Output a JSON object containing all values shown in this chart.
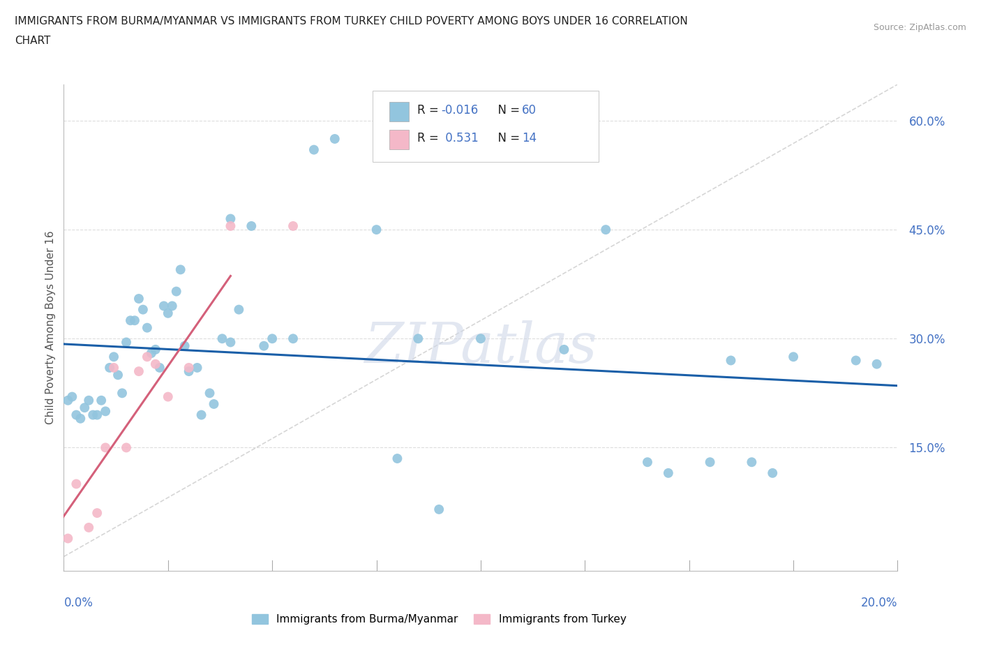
{
  "title_line1": "IMMIGRANTS FROM BURMA/MYANMAR VS IMMIGRANTS FROM TURKEY CHILD POVERTY AMONG BOYS UNDER 16 CORRELATION",
  "title_line2": "CHART",
  "source": "Source: ZipAtlas.com",
  "ylabel": "Child Poverty Among Boys Under 16",
  "ytick_vals": [
    0.0,
    0.15,
    0.3,
    0.45,
    0.6
  ],
  "ytick_labels": [
    "",
    "15.0%",
    "30.0%",
    "45.0%",
    "60.0%"
  ],
  "xlim": [
    0.0,
    0.2
  ],
  "ylim": [
    -0.02,
    0.65
  ],
  "watermark": "ZIPatlas",
  "color_burma": "#92c5de",
  "color_turkey": "#f4b8c8",
  "burma_trendline_color": "#1a5fa8",
  "turkey_trendline_color": "#d4607a",
  "diag_line_color": "#cccccc",
  "grid_color": "#dddddd",
  "burma_scatter_x": [
    0.001,
    0.002,
    0.003,
    0.004,
    0.005,
    0.006,
    0.007,
    0.008,
    0.009,
    0.01,
    0.011,
    0.012,
    0.013,
    0.014,
    0.015,
    0.016,
    0.017,
    0.018,
    0.019,
    0.02,
    0.021,
    0.022,
    0.023,
    0.024,
    0.025,
    0.026,
    0.027,
    0.028,
    0.029,
    0.03,
    0.032,
    0.033,
    0.035,
    0.036,
    0.038,
    0.04,
    0.04,
    0.042,
    0.045,
    0.048,
    0.05,
    0.055,
    0.06,
    0.065,
    0.075,
    0.08,
    0.085,
    0.09,
    0.1,
    0.12,
    0.13,
    0.14,
    0.145,
    0.155,
    0.16,
    0.165,
    0.17,
    0.175,
    0.19,
    0.195
  ],
  "burma_scatter_y": [
    0.215,
    0.22,
    0.195,
    0.19,
    0.205,
    0.215,
    0.195,
    0.195,
    0.215,
    0.2,
    0.26,
    0.275,
    0.25,
    0.225,
    0.295,
    0.325,
    0.325,
    0.355,
    0.34,
    0.315,
    0.28,
    0.285,
    0.26,
    0.345,
    0.335,
    0.345,
    0.365,
    0.395,
    0.29,
    0.255,
    0.26,
    0.195,
    0.225,
    0.21,
    0.3,
    0.465,
    0.295,
    0.34,
    0.455,
    0.29,
    0.3,
    0.3,
    0.56,
    0.575,
    0.45,
    0.135,
    0.3,
    0.065,
    0.3,
    0.285,
    0.45,
    0.13,
    0.115,
    0.13,
    0.27,
    0.13,
    0.115,
    0.275,
    0.27,
    0.265
  ],
  "turkey_scatter_x": [
    0.001,
    0.003,
    0.006,
    0.008,
    0.01,
    0.012,
    0.015,
    0.018,
    0.02,
    0.022,
    0.025,
    0.03,
    0.04,
    0.055
  ],
  "turkey_scatter_y": [
    0.025,
    0.1,
    0.04,
    0.06,
    0.15,
    0.26,
    0.15,
    0.255,
    0.275,
    0.265,
    0.22,
    0.26,
    0.455,
    0.455
  ]
}
